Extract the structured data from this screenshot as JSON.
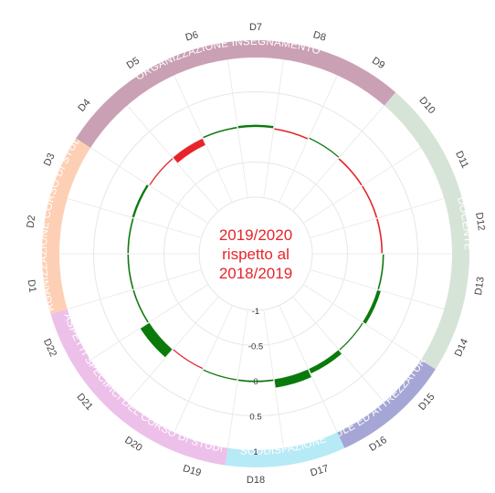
{
  "chart_data": {
    "type": "radial-bar",
    "center_text": [
      "2019/2020",
      "rispetto al",
      "2018/2019"
    ],
    "ticks": [
      "-1",
      "-0.5",
      "0",
      "0.5",
      "1"
    ],
    "ylim": [
      -1,
      1
    ],
    "colors": {
      "positive": "#0a7a0a",
      "negative": "#e8232a",
      "grid": "#e6e6e6"
    },
    "categories": [
      {
        "name": "DOCENTE",
        "color": "#d6e4d8",
        "from": "D10",
        "to": "D14"
      },
      {
        "name": "AULE ED ATTREZZATURE",
        "color": "#a6a6d6",
        "from": "D15",
        "to": "D16"
      },
      {
        "name": "SODDISFAZIONE",
        "color": "#b6eaf6",
        "from": "D17",
        "to": "D18"
      },
      {
        "name": "ASPETTI SPECIFICI DEL CORSO DI STUDI",
        "color": "#edc0ea",
        "from": "D19",
        "to": "D22"
      },
      {
        "name": "ORGANIZZAZIONE CORSO DI STUDI",
        "color": "#fdd0b5",
        "from": "D1",
        "to": "D3"
      },
      {
        "name": "ORGANIZZAZIONE INSEGNAMENTO",
        "color": "#caa0b4",
        "from": "D4",
        "to": "D9"
      }
    ],
    "segments": [
      {
        "label": "D1",
        "value": 0.02
      },
      {
        "label": "D2",
        "value": 0.02
      },
      {
        "label": "D3",
        "value": 0.03
      },
      {
        "label": "D4",
        "value": -0.01
      },
      {
        "label": "D5",
        "value": -0.1
      },
      {
        "label": "D6",
        "value": 0.02
      },
      {
        "label": "D7",
        "value": 0.03
      },
      {
        "label": "D8",
        "value": -0.02
      },
      {
        "label": "D9",
        "value": 0.01
      },
      {
        "label": "D10",
        "value": -0.02
      },
      {
        "label": "D11",
        "value": -0.02
      },
      {
        "label": "D12",
        "value": -0.02
      },
      {
        "label": "D13",
        "value": 0.02
      },
      {
        "label": "D14",
        "value": 0.05
      },
      {
        "label": "D15",
        "value": 0.01
      },
      {
        "label": "D16",
        "value": 0.07
      },
      {
        "label": "D17",
        "value": 0.12
      },
      {
        "label": "D18",
        "value": 0.02
      },
      {
        "label": "D19",
        "value": 0.01
      },
      {
        "label": "D20",
        "value": -0.01
      },
      {
        "label": "D21",
        "value": 0.15
      },
      {
        "label": "D22",
        "value": 0.02
      }
    ]
  }
}
